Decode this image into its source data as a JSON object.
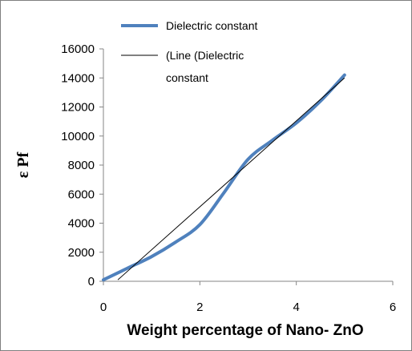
{
  "chart_data": {
    "type": "line",
    "xlabel": "Weight percentage of Nano- ZnO",
    "ylabel": "ε Pf",
    "xlim": [
      0,
      6
    ],
    "ylim": [
      0,
      16000
    ],
    "x_ticks": [
      "0",
      "2",
      "4",
      "6"
    ],
    "y_ticks": [
      "0",
      "2000",
      "4000",
      "6000",
      "8000",
      "10000",
      "12000",
      "14000",
      "16000"
    ],
    "grid": false,
    "legend_position": "top-right",
    "series": [
      {
        "name": "Dielectric constant",
        "color": "#4f81bd",
        "style": "smooth",
        "x": [
          0,
          0.5,
          1,
          1.5,
          2,
          2.5,
          3,
          3.5,
          4,
          4.5,
          5
        ],
        "y": [
          100,
          900,
          1700,
          2700,
          3900,
          6100,
          8400,
          9700,
          10900,
          12400,
          14200
        ]
      },
      {
        "name": "(Line (Dielectric constant",
        "legend_lines": [
          "(Line (Dielectric",
          "constant"
        ],
        "color": "#000000",
        "style": "straight",
        "x": [
          0.3,
          5
        ],
        "y": [
          100,
          14000
        ]
      }
    ]
  }
}
